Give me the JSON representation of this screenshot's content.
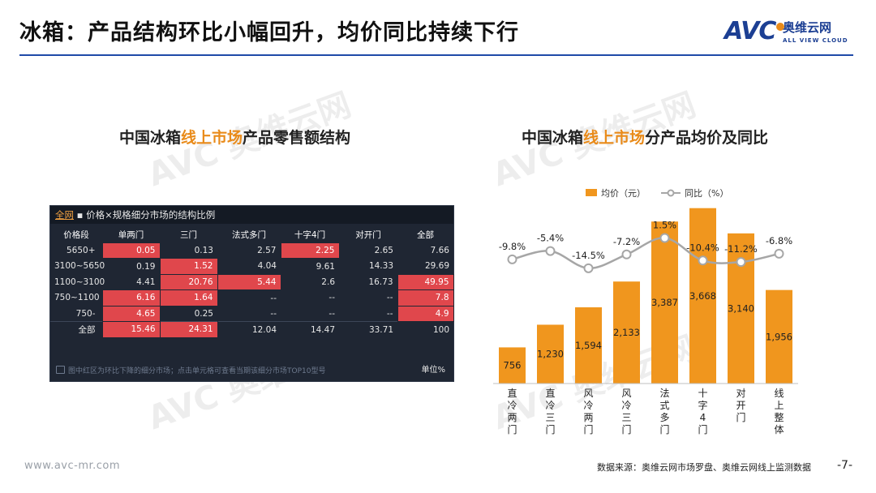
{
  "slide": {
    "title": "冰箱：产品结构环比小幅回升，均价同比持续下行",
    "page_number": "-7-",
    "url": "www.avc-mr.com",
    "source": "数据来源：奥维云网市场罗盘、奥维云网线上监测数据"
  },
  "logo": {
    "mark": "AVC",
    "cn": "奥维云网",
    "en": "ALL VIEW CLOUD"
  },
  "watermark": {
    "text": "AVC 奥维云网",
    "sub": "ALL VIEW CLOUD"
  },
  "left_section": {
    "title_pre": "中国冰箱",
    "title_highlight": "线上市场",
    "title_post": "产品零售额结构"
  },
  "right_section": {
    "title_pre": "中国冰箱",
    "title_highlight": "线上市场",
    "title_post": "分产品均价及同比"
  },
  "table": {
    "tag": "全网",
    "caption": "▪ 价格×规格细分市场的结构比例",
    "columns": [
      "价格段",
      "单两门",
      "三门",
      "法式多门",
      "十字4门",
      "对开门",
      "全部"
    ],
    "rows": [
      {
        "label": "5650+",
        "cells": [
          "0.05",
          "0.13",
          "2.57",
          "2.25",
          "2.65",
          "7.66"
        ],
        "red": [
          0,
          3
        ]
      },
      {
        "label": "3100~5650",
        "cells": [
          "0.19",
          "1.52",
          "4.04",
          "9.61",
          "14.33",
          "29.69"
        ],
        "red": [
          1
        ]
      },
      {
        "label": "1100~3100",
        "cells": [
          "4.41",
          "20.76",
          "5.44",
          "2.6",
          "16.73",
          "49.95"
        ],
        "red": [
          1,
          2,
          5
        ]
      },
      {
        "label": "750~1100",
        "cells": [
          "6.16",
          "1.64",
          "--",
          "--",
          "--",
          "7.8"
        ],
        "red": [
          0,
          1,
          5
        ]
      },
      {
        "label": "750-",
        "cells": [
          "4.65",
          "0.25",
          "--",
          "--",
          "--",
          "4.9"
        ],
        "red": [
          0,
          5
        ]
      },
      {
        "label": "全部",
        "cells": [
          "15.46",
          "24.31",
          "12.04",
          "14.47",
          "33.71",
          "100"
        ],
        "red": [
          0,
          1
        ]
      }
    ],
    "footnote": "图中红区为环比下降的细分市场；点击单元格可查看当期该细分市场TOP10型号",
    "unit": "单位%"
  },
  "chart_data": {
    "type": "bar",
    "title": "中国冰箱线上市场分产品均价及同比",
    "categories": [
      "直冷两门",
      "直冷三门",
      "风冷两门",
      "风冷三门",
      "法式多门",
      "十字4门",
      "对开门",
      "线上整体"
    ],
    "series": [
      {
        "name": "均价（元）",
        "type": "bar",
        "color": "#f0961e",
        "values": [
          756,
          1230,
          1594,
          2133,
          3387,
          3668,
          3140,
          1956
        ],
        "labels": [
          "756",
          "1,230",
          "1,594",
          "2,133",
          "3,387",
          "3,668",
          "3,140",
          "1,956"
        ]
      },
      {
        "name": "同比（%）",
        "type": "line",
        "color": "#a6a6a6",
        "values": [
          -9.8,
          -5.4,
          -14.5,
          -7.2,
          1.5,
          -10.4,
          -11.2,
          -6.8
        ],
        "labels": [
          "-9.8%",
          "-5.4%",
          "-14.5%",
          "-7.2%",
          "1.5%",
          "-10.4%",
          "-11.2%",
          "-6.8%"
        ]
      }
    ],
    "legend": [
      "均价（元）",
      "同比（%）"
    ],
    "ylim_bar": [
      0,
      3900
    ],
    "ylim_line": [
      -24,
      6
    ]
  }
}
